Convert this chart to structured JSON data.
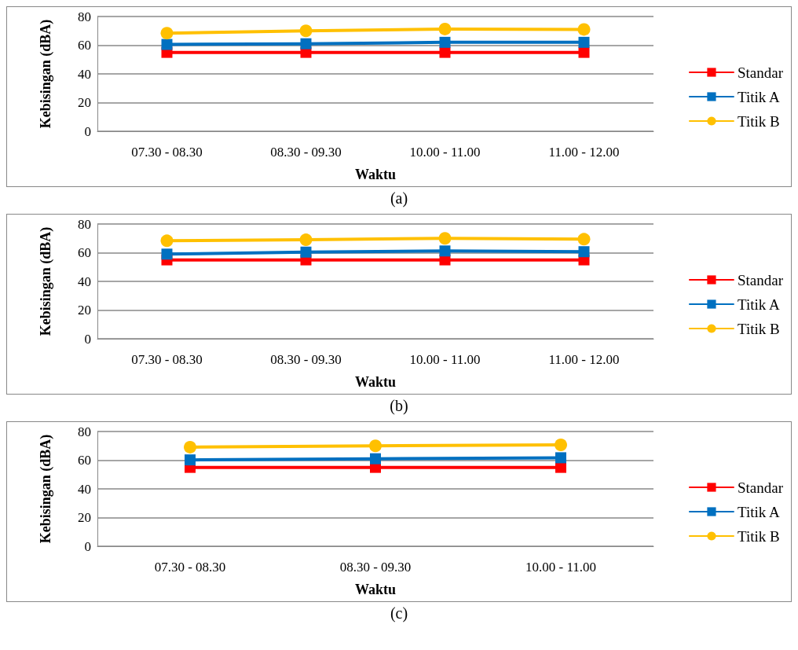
{
  "chart_data": [
    {
      "type": "line",
      "xlabel": "Waktu",
      "ylabel": "Kebisingan (dBA)",
      "categories": [
        "07.30 - 08.30",
        "08.30 - 09.30",
        "10.00 - 11.00",
        "11.00 - 12.00"
      ],
      "ylim": [
        0,
        80
      ],
      "yticks": [
        0,
        20,
        40,
        60,
        80
      ],
      "grid": "y",
      "legend": "right",
      "annotations": [
        "(a)"
      ],
      "series": [
        {
          "name": "Standar",
          "color": "#ff0000",
          "marker": "square",
          "values": [
            55,
            55,
            55,
            55
          ]
        },
        {
          "name": "Titik A",
          "color": "#0070c0",
          "marker": "square",
          "values": [
            60.5,
            61,
            62,
            62
          ]
        },
        {
          "name": "Titik B",
          "color": "#ffc000",
          "marker": "circle",
          "values": [
            68.4,
            70,
            71.3,
            71
          ]
        }
      ]
    },
    {
      "type": "line",
      "xlabel": "Waktu",
      "ylabel": "Kebisingan (dBA)",
      "categories": [
        "07.30 - 08.30",
        "08.30 - 09.30",
        "10.00 - 11.00",
        "11.00 - 12.00"
      ],
      "ylim": [
        0,
        80
      ],
      "yticks": [
        0,
        20,
        40,
        60,
        80
      ],
      "grid": "y",
      "legend": "right",
      "annotations": [
        "(b)"
      ],
      "series": [
        {
          "name": "Standar",
          "color": "#ff0000",
          "marker": "square",
          "values": [
            55,
            55,
            55,
            55
          ]
        },
        {
          "name": "Titik A",
          "color": "#0070c0",
          "marker": "square",
          "values": [
            59,
            60.4,
            61.2,
            60.7
          ]
        },
        {
          "name": "Titik B",
          "color": "#ffc000",
          "marker": "circle",
          "values": [
            68.3,
            69,
            70,
            69.4
          ]
        }
      ]
    },
    {
      "type": "line",
      "xlabel": "Waktu",
      "ylabel": "Kebisingan (dBA)",
      "categories": [
        "07.30 - 08.30",
        "08.30 - 09.30",
        "10.00 - 11.00"
      ],
      "ylim": [
        0,
        80
      ],
      "yticks": [
        0,
        20,
        40,
        60,
        80
      ],
      "grid": "y",
      "legend": "right",
      "annotations": [
        "(c)"
      ],
      "series": [
        {
          "name": "Standar",
          "color": "#ff0000",
          "marker": "square",
          "values": [
            55,
            55,
            55
          ]
        },
        {
          "name": "Titik A",
          "color": "#0070c0",
          "marker": "square",
          "values": [
            60.2,
            61,
            61.7
          ]
        },
        {
          "name": "Titik B",
          "color": "#ffc000",
          "marker": "circle",
          "values": [
            69.1,
            70,
            70.7
          ]
        }
      ]
    }
  ]
}
